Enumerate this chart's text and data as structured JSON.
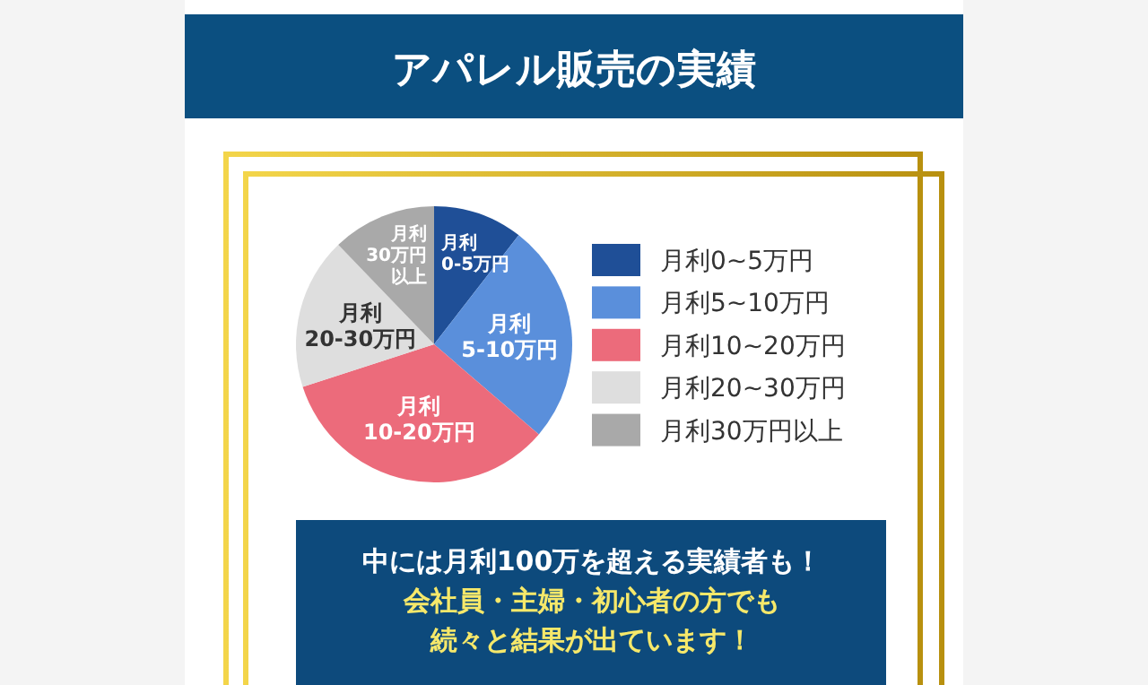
{
  "chart_data": {
    "type": "pie",
    "title": "アパレル販売の実績",
    "categories": [
      "月利0~5万円",
      "月利5~10万円",
      "月利10~20万円",
      "月利20~30万円",
      "月利30万円以上"
    ],
    "values": [
      10.5,
      25.8,
      33.7,
      17.8,
      12.2
    ],
    "colors": [
      "#1f4f97",
      "#5a8fdb",
      "#ec6b7b",
      "#dedede",
      "#a9a9a9"
    ],
    "legend": "right",
    "annotations": [
      {
        "text": "月利",
        "x": "月利0~5万円"
      },
      {
        "text": "0-5万円",
        "x": "月利0~5万円"
      },
      {
        "text": "月利",
        "x": "月利5~10万円"
      },
      {
        "text": "5-10万円",
        "x": "月利5~10万円"
      },
      {
        "text": "月利",
        "x": "月利10~20万円"
      },
      {
        "text": "10-20万円",
        "x": "月利10~20万円"
      },
      {
        "text": "月利",
        "x": "月利20~30万円"
      },
      {
        "text": "20-30万円",
        "x": "月利20~30万円"
      },
      {
        "text": "月利",
        "x": "月利30万円以上"
      },
      {
        "text": "30万円",
        "x": "月利30万円以上"
      },
      {
        "text": "以上",
        "x": "月利30万円以上"
      },
      "中には月利100万を超える実績者も！",
      "会社員・主婦・初心者の方でも",
      "続々と結果が出ています！"
    ]
  }
}
